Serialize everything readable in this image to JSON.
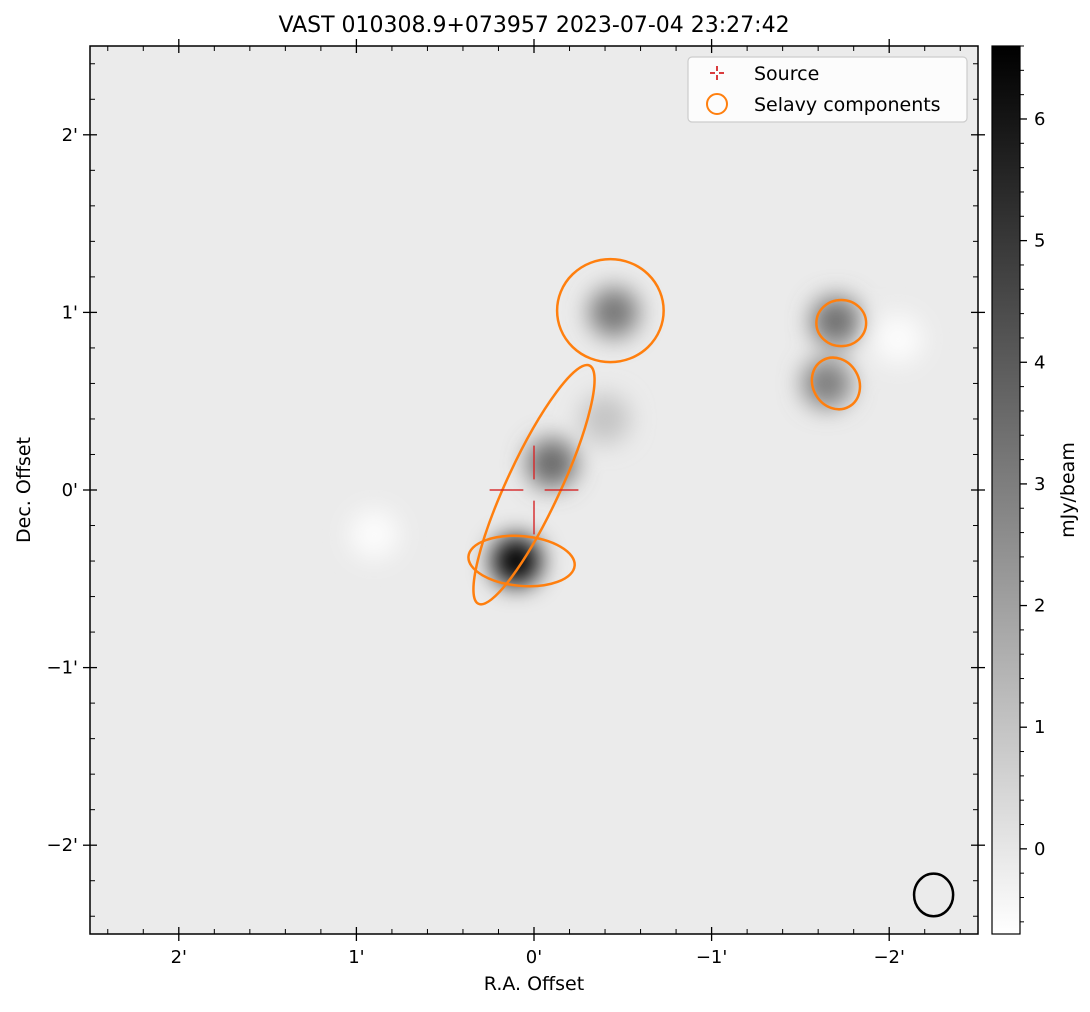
{
  "chart_data": {
    "type": "heatmap",
    "title": "VAST 010308.9+073957 2023-07-04 23:27:42",
    "xlabel": "R.A. Offset",
    "ylabel": "Dec. Offset",
    "xlim": [
      2.5,
      -2.5
    ],
    "ylim": [
      -2.5,
      2.5
    ],
    "x_ticks": [
      {
        "value": 2,
        "label": "2'"
      },
      {
        "value": 1,
        "label": "1'"
      },
      {
        "value": 0,
        "label": "0'"
      },
      {
        "value": -1,
        "label": "−1'"
      },
      {
        "value": -2,
        "label": "−2'"
      }
    ],
    "y_ticks": [
      {
        "value": 2,
        "label": "2'"
      },
      {
        "value": 1,
        "label": "1'"
      },
      {
        "value": 0,
        "label": "0'"
      },
      {
        "value": -1,
        "label": "−1'"
      },
      {
        "value": -2,
        "label": "−2'"
      }
    ],
    "colorbar": {
      "label": "mJy/beam",
      "range": [
        -0.7,
        6.6
      ],
      "ticks": [
        0,
        1,
        2,
        3,
        4,
        5,
        6
      ],
      "colormap": "gray_r"
    },
    "blobs": [
      {
        "x": -0.1,
        "y": 0.15,
        "peak": 3.6
      },
      {
        "x": 0.1,
        "y": -0.4,
        "peak": 6.6
      },
      {
        "x": -0.45,
        "y": 1.0,
        "peak": 3.2
      },
      {
        "x": -1.7,
        "y": 0.95,
        "peak": 3.4
      },
      {
        "x": -1.65,
        "y": 0.6,
        "peak": 3.0
      },
      {
        "x": -0.4,
        "y": 0.4,
        "peak": 1.0
      },
      {
        "x": 0.9,
        "y": -0.25,
        "peak": -0.6
      },
      {
        "x": -2.05,
        "y": 0.85,
        "peak": -0.6
      }
    ],
    "source": {
      "x": 0.0,
      "y": 0.0,
      "color": "#d62728"
    },
    "selavy_components": [
      {
        "x": -0.0,
        "y": 0.03,
        "major": 0.74,
        "minor": 0.15,
        "pa_deg": 25
      },
      {
        "x": 0.07,
        "y": -0.4,
        "major": 0.3,
        "minor": 0.14,
        "pa_deg": 95
      },
      {
        "x": -0.43,
        "y": 1.01,
        "major": 0.29,
        "minor": 0.3,
        "pa_deg": 0
      },
      {
        "x": -1.73,
        "y": 0.94,
        "major": 0.13,
        "minor": 0.14,
        "pa_deg": 0
      },
      {
        "x": -1.7,
        "y": 0.6,
        "major": 0.13,
        "minor": 0.15,
        "pa_deg": 60
      }
    ],
    "selavy_color": "#ff7f0e",
    "beam": {
      "x": -2.25,
      "y": -2.28,
      "major": 0.11,
      "minor": 0.12
    },
    "legend": {
      "position": "top-right",
      "entries": [
        {
          "label": "Source",
          "marker": "plus",
          "color": "#d62728"
        },
        {
          "label": "Selavy components",
          "marker": "circle",
          "color": "#ff7f0e"
        }
      ]
    },
    "grid": false
  }
}
